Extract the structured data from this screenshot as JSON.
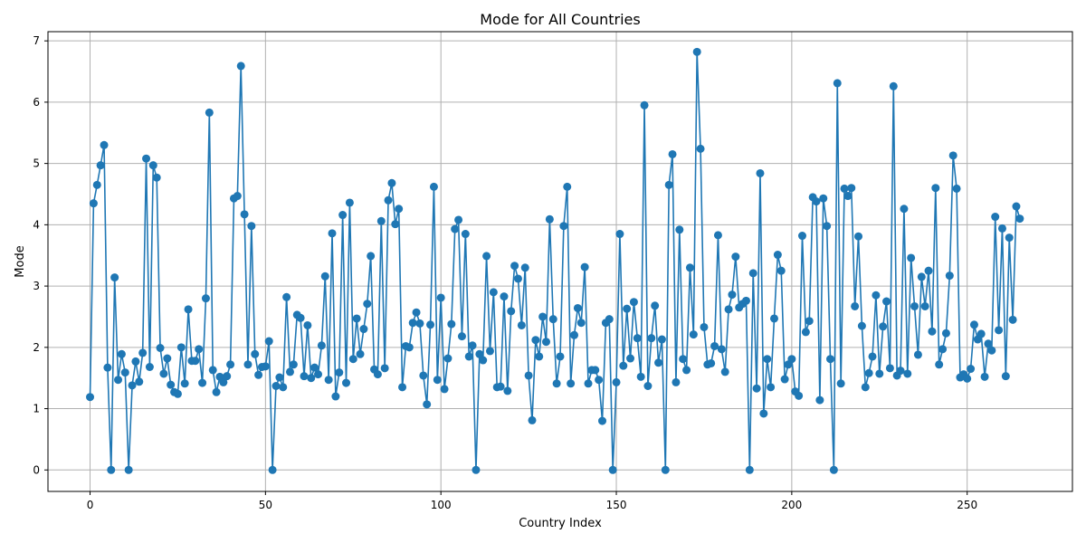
{
  "chart_data": {
    "type": "line",
    "title": "Mode for All Countries",
    "xlabel": "Country Index",
    "ylabel": "Mode",
    "xlim": [
      -12,
      280
    ],
    "ylim": [
      -0.35,
      7.15
    ],
    "xticks": [
      0,
      50,
      100,
      150,
      200,
      250
    ],
    "yticks": [
      0,
      1,
      2,
      3,
      4,
      5,
      6,
      7
    ],
    "grid": true,
    "marker": "circle",
    "color": "#1f77b4",
    "series": [
      {
        "values": [
          1.19,
          4.35,
          4.65,
          4.97,
          5.3,
          1.67,
          0,
          3.14,
          1.47,
          1.89,
          1.59,
          0,
          1.38,
          1.77,
          1.44,
          1.91,
          5.08,
          1.68,
          4.97,
          4.77,
          1.99,
          1.57,
          1.82,
          1.39,
          1.27,
          1.24,
          2.0,
          1.41,
          2.62,
          1.78,
          1.78,
          1.97,
          1.42,
          2.8,
          5.83,
          1.63,
          1.27,
          1.52,
          1.43,
          1.53,
          1.72,
          4.43,
          4.47,
          6.59,
          4.17,
          1.72,
          3.98,
          1.89,
          1.55,
          1.68,
          1.69,
          2.1,
          0,
          1.37,
          1.51,
          1.35,
          2.82,
          1.6,
          1.72,
          2.53,
          2.48,
          1.53,
          2.36,
          1.5,
          1.67,
          1.56,
          2.03,
          3.16,
          1.47,
          3.86,
          1.2,
          1.59,
          4.16,
          1.42,
          4.36,
          1.81,
          2.47,
          1.89,
          2.3,
          2.71,
          3.49,
          1.64,
          1.56,
          4.06,
          1.66,
          4.4,
          4.68,
          4.01,
          4.26,
          1.35,
          2.02,
          2.0,
          2.4,
          2.57,
          2.39,
          1.54,
          1.07,
          2.37,
          4.62,
          1.47,
          2.81,
          1.32,
          1.82,
          2.38,
          3.93,
          4.08,
          2.18,
          3.85,
          1.85,
          2.03,
          0,
          1.89,
          1.79,
          3.49,
          1.94,
          2.9,
          1.35,
          1.36,
          2.83,
          1.29,
          2.59,
          3.33,
          3.12,
          2.36,
          3.3,
          1.54,
          0.81,
          2.12,
          1.85,
          2.5,
          2.09,
          4.09,
          2.46,
          1.41,
          1.85,
          3.98,
          4.62,
          1.41,
          2.2,
          2.64,
          2.4,
          3.31,
          1.41,
          1.63,
          1.63,
          1.47,
          0.8,
          2.4,
          2.46,
          0,
          1.43,
          3.85,
          1.7,
          2.63,
          1.82,
          2.74,
          2.15,
          1.52,
          5.95,
          1.37,
          2.15,
          2.68,
          1.75,
          2.13,
          0,
          4.65,
          5.15,
          1.43,
          3.92,
          1.81,
          1.63,
          3.3,
          2.21,
          6.82,
          5.24,
          2.33,
          1.72,
          1.74,
          2.02,
          3.83,
          1.97,
          1.6,
          2.62,
          2.86,
          3.48,
          2.65,
          2.71,
          2.76,
          0,
          3.21,
          1.33,
          4.84,
          0.92,
          1.81,
          1.35,
          2.47,
          3.51,
          3.25,
          1.48,
          1.72,
          1.81,
          1.28,
          1.21,
          3.82,
          2.25,
          2.43,
          4.45,
          4.38,
          1.14,
          4.43,
          3.98,
          1.81,
          0,
          6.31,
          1.41,
          4.59,
          4.47,
          4.6,
          2.67,
          3.81,
          2.35,
          1.35,
          1.58,
          1.85,
          2.85,
          1.57,
          2.34,
          2.75,
          1.66,
          6.26,
          1.54,
          1.62,
          4.26,
          1.57,
          3.46,
          2.67,
          1.88,
          3.15,
          2.67,
          3.25,
          2.26,
          4.6,
          1.72,
          1.97,
          2.23,
          3.17,
          5.13,
          4.59,
          1.51,
          1.56,
          1.49,
          1.65,
          2.37,
          2.13,
          2.22,
          1.52,
          2.06,
          1.95,
          4.13,
          2.28,
          3.94,
          1.53,
          3.79,
          2.45,
          4.3,
          4.1
        ]
      }
    ]
  }
}
